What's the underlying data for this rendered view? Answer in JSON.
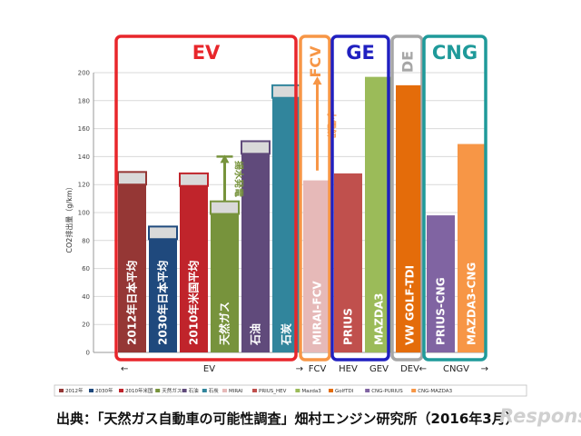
{
  "watermark": "Response.",
  "chart_data": {
    "type": "bar",
    "ylabel": "CO2排出量（g/km）",
    "ylim": [
      0,
      200
    ],
    "yticks": [
      0,
      20,
      40,
      60,
      80,
      100,
      120,
      140,
      160,
      180,
      200
    ],
    "grid": true,
    "source": "出典：「天然ガス自動車の可能性調査」畑村エンジン研究所（2016年3月）",
    "bars": [
      {
        "name": "2012年",
        "label": "2012年日本平均",
        "value": 120,
        "cap": 129,
        "color": "#953735",
        "legend": "2012年"
      },
      {
        "name": "2030年",
        "label": "2030年日本平均",
        "value": 81,
        "cap": 90,
        "color": "#1f497d",
        "legend": "2030年"
      },
      {
        "name": "2010年米国",
        "label": "2010年米国平均",
        "value": 119,
        "cap": 128,
        "color": "#c0242b",
        "legend": "2010年米国"
      },
      {
        "name": "天然ガス",
        "label": "天然ガス",
        "value": 99,
        "cap": 108,
        "color": "#77933c",
        "legend": "天然ガス"
      },
      {
        "name": "石油",
        "label": "石油",
        "value": 142,
        "cap": 151,
        "color": "#604a7b",
        "legend": "石油"
      },
      {
        "name": "石炭",
        "label": "石炭",
        "value": 182,
        "cap": 191,
        "color": "#31859c",
        "legend": "石炭"
      },
      {
        "name": "MIRAI",
        "label": "MIRAI-FCV",
        "value": 123,
        "cap": 123,
        "color": "#e6b9b8",
        "legend": "MIRAI"
      },
      {
        "name": "PRIUS_HEV",
        "label": "PRIUS",
        "value": 128,
        "cap": 128,
        "color": "#c0504d",
        "legend": "PRIUS_HEV"
      },
      {
        "name": "Mazda3",
        "label": "MAZDA3",
        "value": 197,
        "cap": 197,
        "color": "#9bbb59",
        "legend": "Mazda3"
      },
      {
        "name": "GolfTDI",
        "label": "VW GOLF-TDI",
        "value": 191,
        "cap": 191,
        "color": "#e46c0a",
        "legend": "GolfTDI"
      },
      {
        "name": "CNG-PURIUS",
        "label": "PRIUS-CNG",
        "value": 98,
        "cap": 98,
        "color": "#8064a2",
        "legend": "CNG-PURIUS"
      },
      {
        "name": "CNG-MAZDA3",
        "label": "MAZDA3-CNG",
        "value": 149,
        "cap": 149,
        "color": "#f79646",
        "legend": "CNG-MAZDA3"
      }
    ],
    "groups": [
      {
        "label": "EV",
        "color": "#e8262b",
        "from": 0,
        "to": 5
      },
      {
        "label": "FCV",
        "color": "#f79646",
        "from": 6,
        "to": 6
      },
      {
        "label": "GE",
        "color": "#2020c0",
        "from": 7,
        "to": 8
      },
      {
        "label": "DE",
        "color": "#a6a6a6",
        "from": 9,
        "to": 9
      },
      {
        "label": "CNG",
        "color": "#1f9a9a",
        "from": 10,
        "to": 11
      }
    ],
    "xcategories": [
      {
        "label": "←",
        "from": 0,
        "to": 0,
        "align": "left"
      },
      {
        "label": "EV",
        "from": 2,
        "to": 3,
        "align": "center"
      },
      {
        "label": "→",
        "from": 5,
        "to": 5,
        "align": "right"
      },
      {
        "label": "FCV",
        "from": 6,
        "to": 6,
        "align": "center"
      },
      {
        "label": "HEV",
        "from": 7,
        "to": 7,
        "align": "center"
      },
      {
        "label": "GEV",
        "from": 8,
        "to": 8,
        "align": "center"
      },
      {
        "label": "DEV",
        "from": 9,
        "to": 9,
        "align": "center"
      },
      {
        "label": "←",
        "from": 9,
        "to": 9,
        "align": "right"
      },
      {
        "label": "CNGV",
        "from": 10,
        "to": 11,
        "align": "center"
      },
      {
        "label": "→",
        "from": 11,
        "to": 11,
        "align": "right"
      }
    ],
    "annotations": [
      {
        "text": "揚水発電",
        "bar": 3,
        "arrow_from": 108,
        "arrow_to": 140,
        "color": "#77933c"
      },
      {
        "text": "水電解",
        "bar": 6,
        "arrow_from": 130,
        "arrow_to": 196,
        "color": "#f79646"
      }
    ]
  }
}
